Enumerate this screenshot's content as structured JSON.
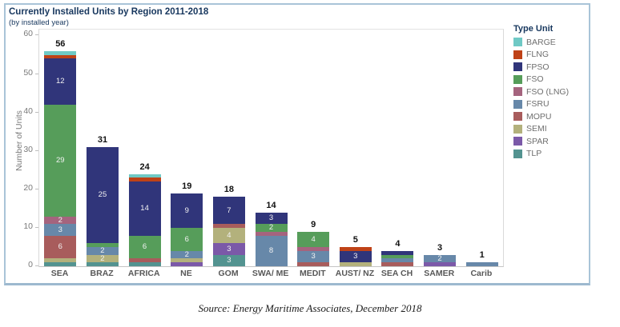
{
  "source": "Source: Energy Maritime Associates, December 2018",
  "chart_data": {
    "type": "bar",
    "stacked": true,
    "title": "Currently Installed Units by Region 2011-2018",
    "subtitle": "(by installed year)",
    "ylabel": "Number of Units",
    "ylim": [
      0,
      60
    ],
    "yticks": [
      0,
      10,
      20,
      30,
      40,
      50,
      60
    ],
    "grid": false,
    "legend_title": "Type Unit",
    "legend_position": "right",
    "categories": [
      "SEA",
      "BRAZ",
      "AFRICA",
      "NE",
      "GOM",
      "SWA/ ME",
      "MEDIT",
      "AUST/ NZ",
      "SEA CH",
      "SAMER",
      "Carib"
    ],
    "totals": [
      56,
      31,
      24,
      19,
      18,
      14,
      9,
      5,
      4,
      3,
      1
    ],
    "stack_order_bottom_to_top": [
      "TLP",
      "SPAR",
      "SEMI",
      "MOPU",
      "FSRU",
      "FSO (LNG)",
      "FSO",
      "FPSO",
      "FLNG",
      "BARGE"
    ],
    "series": [
      {
        "name": "BARGE",
        "color": "#6fc9c5",
        "values": [
          1,
          0,
          1,
          0,
          0,
          0,
          0,
          0,
          0,
          0,
          0
        ]
      },
      {
        "name": "FLNG",
        "color": "#bf4217",
        "values": [
          1,
          0,
          1,
          0,
          0,
          0,
          0,
          1,
          0,
          0,
          0
        ]
      },
      {
        "name": "FPSO",
        "color": "#30357a",
        "values": [
          12,
          25,
          14,
          9,
          7,
          3,
          0,
          3,
          1,
          0,
          0
        ]
      },
      {
        "name": "FSO",
        "color": "#569d5a",
        "values": [
          29,
          1,
          6,
          6,
          0,
          2,
          4,
          0,
          1,
          0,
          0
        ]
      },
      {
        "name": "FSO (LNG)",
        "color": "#a5647e",
        "values": [
          2,
          0,
          0,
          0,
          0,
          1,
          1,
          0,
          0,
          0,
          0
        ]
      },
      {
        "name": "FSRU",
        "color": "#6788a9",
        "values": [
          3,
          2,
          0,
          2,
          0,
          8,
          3,
          0,
          1,
          2,
          1
        ]
      },
      {
        "name": "MOPU",
        "color": "#a85c5c",
        "values": [
          6,
          0,
          1,
          0,
          1,
          0,
          1,
          0,
          1,
          0,
          0
        ]
      },
      {
        "name": "SEMI",
        "color": "#b3b17c",
        "values": [
          1,
          2,
          0,
          1,
          4,
          0,
          0,
          1,
          0,
          0,
          0
        ]
      },
      {
        "name": "SPAR",
        "color": "#7b59a8",
        "values": [
          0,
          0,
          0,
          1,
          3,
          0,
          0,
          0,
          0,
          1,
          0
        ]
      },
      {
        "name": "TLP",
        "color": "#539390",
        "values": [
          1,
          1,
          1,
          0,
          3,
          0,
          0,
          0,
          0,
          0,
          0
        ]
      }
    ]
  }
}
